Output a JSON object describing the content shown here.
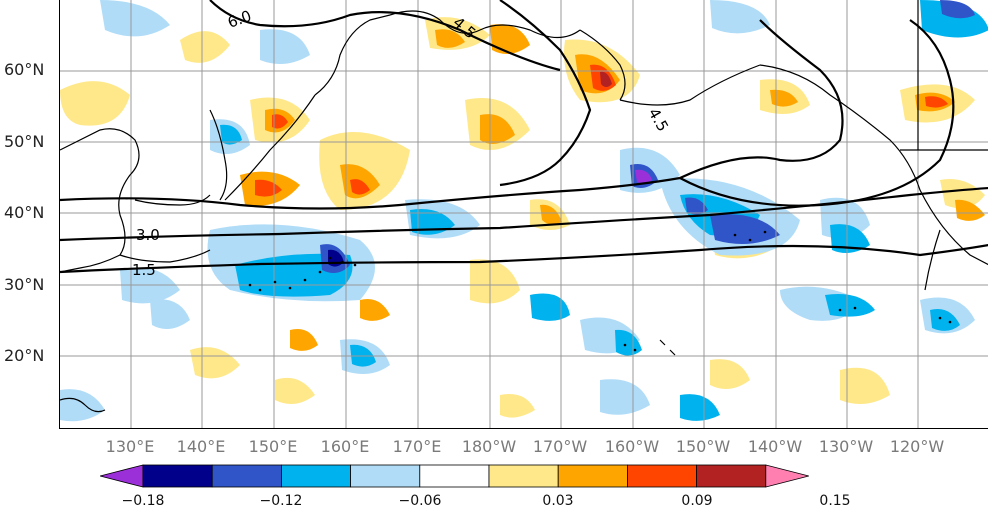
{
  "map": {
    "lat_labels": [
      "60°N",
      "50°N",
      "40°N",
      "30°N",
      "20°N"
    ],
    "lon_labels": [
      "130°E",
      "140°E",
      "150°E",
      "160°E",
      "170°E",
      "180°W",
      "170°W",
      "160°W",
      "150°W",
      "140°W",
      "130°W",
      "120°W"
    ],
    "contour_labels": [
      "6.0",
      "4.5",
      "4.5",
      "3.0",
      "1.5"
    ]
  },
  "colorbar": {
    "tick_labels": [
      "−0.18",
      "−0.12",
      "−0.06",
      "0.03",
      "0.09",
      "0.15"
    ],
    "colors": [
      "#9b30d9",
      "#00008b",
      "#2f55c9",
      "#00b2ee",
      "#b0dcf7",
      "#ffffff",
      "#ffe88a",
      "#ffa500",
      "#ff4500",
      "#b22222",
      "#ff7fb0"
    ]
  }
}
